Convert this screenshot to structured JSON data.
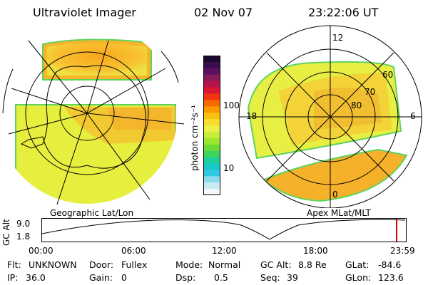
{
  "header": {
    "instrument": "Ultraviolet Imager",
    "date": "02 Nov 07",
    "time": "23:22:06 UT"
  },
  "colorbar": {
    "unit_label": "photon cm⁻²s⁻¹",
    "ticks": [
      "100",
      "10"
    ],
    "colors": [
      "#1a0a2e",
      "#3a0d4e",
      "#5e1060",
      "#8a1b5a",
      "#b5154b",
      "#d9162f",
      "#f23510",
      "#f86a00",
      "#fa9a00",
      "#fbbf10",
      "#f8dd30",
      "#eef04a",
      "#c8ee38",
      "#9de630",
      "#6cdc34",
      "#3ed35a",
      "#1ecf9b",
      "#18c9c8",
      "#32c8e4",
      "#8bdbef",
      "#c9ecf4",
      "#f2f8fa"
    ]
  },
  "left_panel": {
    "label": "Geographic Lat/Lon"
  },
  "right_panel": {
    "label": "Apex MLat/MLT",
    "mlt_labels": {
      "top": "12",
      "left": "18",
      "right": "6",
      "bottom": "0"
    },
    "lat_labels": [
      "60",
      "70",
      "80"
    ]
  },
  "orbit": {
    "y_label": "GC Alt",
    "y_ticks": [
      "9.0",
      "1.8"
    ],
    "x_ticks": [
      "00:00",
      "06:00",
      "12:00",
      "18:00",
      "23:59"
    ]
  },
  "status": {
    "flt_label": "Flt:",
    "flt_value": "UNKNOWN",
    "door_label": "Door:",
    "door_value": "Fullex",
    "mode_label": "Mode:",
    "mode_value": "Normal",
    "gcalt_label": "GC Alt:",
    "gcalt_value": "8.8 Re",
    "glat_label": "GLat:",
    "glat_value": "-84.6",
    "ip_label": "IP:",
    "ip_value": "36.0",
    "gain_label": "Gain:",
    "gain_value": "0",
    "dsp_label": "Dsp:",
    "dsp_value": "0.5",
    "seq_label": "Seq:",
    "seq_value": "39",
    "glon_label": "GLon:",
    "glon_value": "123.6"
  }
}
